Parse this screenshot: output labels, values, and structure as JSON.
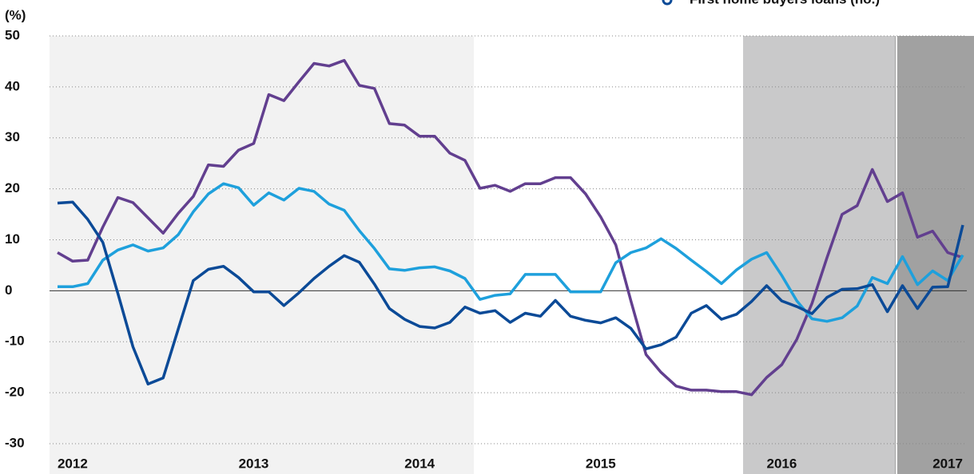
{
  "chart_data": {
    "type": "line",
    "y_label": "(%)",
    "categories": [
      null,
      "2012",
      null,
      null,
      null,
      null,
      null,
      null,
      null,
      null,
      null,
      null,
      null,
      "2013",
      null,
      null,
      null,
      null,
      null,
      null,
      null,
      null,
      null,
      null,
      "2014",
      null,
      null,
      null,
      null,
      null,
      null,
      null,
      null,
      null,
      null,
      null,
      "2015",
      null,
      null,
      null,
      null,
      null,
      null,
      null,
      null,
      null,
      null,
      null,
      "2016",
      null,
      null,
      null,
      null,
      null,
      null,
      null,
      null,
      null,
      null,
      "2017",
      null
    ],
    "series": [
      {
        "color": "#623f8f",
        "values": [
          7.5,
          5.8,
          6,
          12.5,
          18.3,
          17.3,
          14.3,
          11.3,
          15.2,
          18.5,
          24.7,
          24.4,
          27.6,
          28.9,
          38.5,
          37.3,
          41,
          44.6,
          44.1,
          45.2,
          40.3,
          39.7,
          32.8,
          32.5,
          30.3,
          30.3,
          27,
          25.6,
          20.1,
          20.7,
          19.5,
          21,
          21,
          22.2,
          22.2,
          19,
          14.5,
          9,
          -2,
          -12.5,
          -16,
          -18.7,
          -19.5,
          -19.5,
          -19.8,
          -19.8,
          -20.4,
          -17,
          -14.5,
          -9.5,
          -2.5,
          6.5,
          15,
          16.7,
          23.8,
          17.5,
          19.2,
          10.5,
          11.7,
          7.5,
          6.5
        ]
      },
      {
        "color": "#1ea0dc",
        "values": [
          0.8,
          0.8,
          1.4,
          6,
          8,
          9,
          7.8,
          8.4,
          11,
          15.5,
          19,
          21,
          20.2,
          16.8,
          19.2,
          17.8,
          20.1,
          19.5,
          17,
          15.8,
          11.8,
          8.3,
          4.3,
          4,
          4.5,
          4.7,
          3.9,
          2.4,
          -1.7,
          -0.9,
          -0.6,
          3.2,
          3.2,
          3.2,
          -0.2,
          -0.2,
          -0.2,
          5.5,
          7.5,
          8.4,
          10.2,
          8.3,
          6,
          3.8,
          1.4,
          4.1,
          6.2,
          7.5,
          3,
          -2,
          -5.5,
          -6,
          -5.3,
          -3,
          2.6,
          1.4,
          6.7,
          1.2,
          3.9,
          2,
          7
        ]
      },
      {
        "name": "First home buyers loans (no.)",
        "color": "#0b4a97",
        "values": [
          17.2,
          17.4,
          14,
          9.5,
          -0.5,
          -11,
          -18.3,
          -17.1,
          -7.5,
          2,
          4.2,
          4.8,
          2.6,
          -0.2,
          -0.2,
          -2.9,
          -0.4,
          2.4,
          4.8,
          6.9,
          5.6,
          1.3,
          -3.5,
          -5.6,
          -7,
          -7.3,
          -6.2,
          -3.2,
          -4.4,
          -3.9,
          -6.2,
          -4.4,
          -5,
          -1.9,
          -5,
          -5.8,
          -6.3,
          -5.3,
          -7.4,
          -11.4,
          -10.6,
          -9.1,
          -4.4,
          -2.9,
          -5.6,
          -4.6,
          -2.1,
          1,
          -2,
          -3.1,
          -4.5,
          -1.3,
          0.3,
          0.4,
          1.2,
          -4.1,
          1,
          -3.5,
          0.7,
          0.8,
          12.9
        ]
      }
    ],
    "ylim": [
      -30,
      50
    ],
    "yticks": [
      -30,
      -20,
      -10,
      0,
      10,
      20,
      30,
      40,
      50
    ],
    "grid": true
  }
}
